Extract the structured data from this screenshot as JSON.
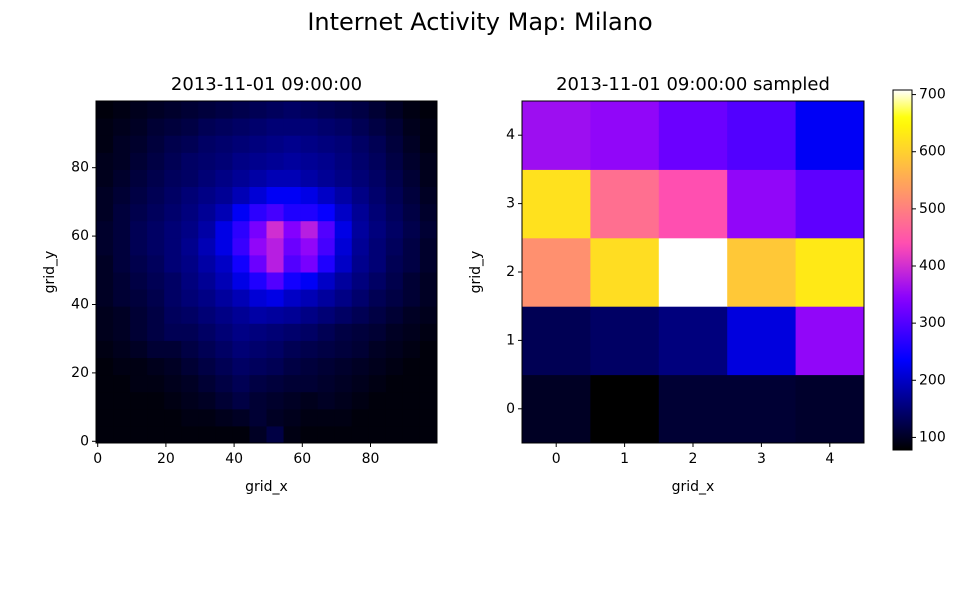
{
  "title": "Internet Activity Map: Milano",
  "chart_data": [
    {
      "type": "heatmap",
      "title": "2013-11-01 09:00:00",
      "x_label": "grid_x",
      "y_label": "grid_y",
      "colormap": "gnuplot2",
      "clim": [
        78,
        708
      ],
      "xlim": [
        -0.5,
        99.5
      ],
      "ylim": [
        -0.5,
        99.5
      ],
      "xticks": [
        0,
        20,
        40,
        60,
        80
      ],
      "yticks": [
        0,
        20,
        40,
        60,
        80
      ],
      "z": [
        [
          85,
          85,
          85,
          85,
          85,
          85,
          85,
          85,
          85,
          100,
          120,
          90,
          85,
          85,
          85,
          85,
          85,
          85,
          85,
          85
        ],
        [
          85,
          85,
          85,
          85,
          85,
          90,
          90,
          95,
          100,
          110,
          100,
          95,
          90,
          90,
          90,
          85,
          85,
          85,
          85,
          85
        ],
        [
          85,
          85,
          85,
          85,
          90,
          95,
          100,
          110,
          120,
          110,
          105,
          100,
          95,
          100,
          95,
          90,
          85,
          85,
          85,
          85
        ],
        [
          85,
          85,
          90,
          90,
          95,
          100,
          110,
          120,
          130,
          120,
          115,
          110,
          110,
          105,
          100,
          95,
          90,
          85,
          85,
          85
        ],
        [
          85,
          90,
          90,
          95,
          100,
          110,
          120,
          130,
          140,
          135,
          130,
          120,
          115,
          110,
          105,
          100,
          95,
          90,
          85,
          85
        ],
        [
          90,
          95,
          100,
          110,
          110,
          120,
          130,
          140,
          150,
          145,
          140,
          130,
          125,
          120,
          115,
          110,
          100,
          95,
          90,
          85
        ],
        [
          95,
          100,
          110,
          120,
          130,
          130,
          140,
          150,
          160,
          155,
          150,
          145,
          140,
          130,
          120,
          115,
          110,
          100,
          95,
          90
        ],
        [
          95,
          100,
          110,
          120,
          135,
          140,
          150,
          160,
          170,
          180,
          175,
          170,
          160,
          150,
          140,
          130,
          120,
          110,
          100,
          95
        ],
        [
          100,
          110,
          115,
          125,
          140,
          150,
          160,
          175,
          190,
          210,
          220,
          200,
          190,
          175,
          160,
          145,
          130,
          120,
          110,
          100
        ],
        [
          100,
          110,
          120,
          130,
          140,
          155,
          170,
          190,
          220,
          260,
          300,
          250,
          230,
          200,
          175,
          155,
          140,
          125,
          110,
          100
        ],
        [
          100,
          115,
          125,
          135,
          150,
          160,
          180,
          200,
          250,
          320,
          380,
          300,
          330,
          260,
          200,
          165,
          150,
          130,
          120,
          105
        ],
        [
          105,
          115,
          130,
          140,
          150,
          165,
          190,
          220,
          280,
          350,
          380,
          320,
          350,
          290,
          210,
          170,
          150,
          135,
          120,
          105
        ],
        [
          105,
          115,
          130,
          140,
          150,
          160,
          180,
          220,
          270,
          330,
          400,
          340,
          380,
          300,
          220,
          175,
          155,
          140,
          125,
          110
        ],
        [
          100,
          115,
          125,
          135,
          145,
          155,
          170,
          190,
          230,
          270,
          290,
          260,
          260,
          240,
          200,
          170,
          150,
          135,
          120,
          105
        ],
        [
          100,
          110,
          120,
          130,
          140,
          150,
          160,
          170,
          190,
          210,
          230,
          230,
          220,
          200,
          180,
          160,
          145,
          130,
          115,
          100
        ],
        [
          95,
          105,
          115,
          125,
          135,
          140,
          150,
          160,
          170,
          180,
          190,
          190,
          180,
          170,
          160,
          150,
          140,
          125,
          110,
          95
        ],
        [
          95,
          100,
          110,
          120,
          130,
          140,
          145,
          150,
          160,
          165,
          170,
          175,
          170,
          165,
          155,
          145,
          135,
          120,
          105,
          95
        ],
        [
          90,
          100,
          105,
          115,
          125,
          130,
          140,
          145,
          150,
          155,
          160,
          165,
          160,
          155,
          150,
          140,
          130,
          115,
          100,
          90
        ],
        [
          90,
          95,
          100,
          110,
          115,
          120,
          130,
          135,
          140,
          145,
          150,
          150,
          150,
          145,
          140,
          130,
          120,
          110,
          95,
          90
        ],
        [
          85,
          90,
          95,
          100,
          105,
          110,
          115,
          120,
          125,
          130,
          135,
          140,
          135,
          130,
          125,
          120,
          110,
          100,
          90,
          85
        ]
      ]
    },
    {
      "type": "heatmap",
      "title": "2013-11-01 09:00:00 sampled",
      "x_label": "grid_x",
      "y_label": "grid_y",
      "colormap": "gnuplot2",
      "clim": [
        78,
        708
      ],
      "xlim": [
        -0.5,
        4.5
      ],
      "ylim": [
        -0.5,
        4.5
      ],
      "xticks": [
        0,
        1,
        2,
        3,
        4
      ],
      "yticks": [
        0,
        1,
        2,
        3,
        4
      ],
      "z": [
        [
          100,
          78,
          110,
          110,
          105
        ],
        [
          130,
          140,
          155,
          215,
          350
        ],
        [
          520,
          615,
          708,
          590,
          630
        ],
        [
          620,
          480,
          440,
          350,
          310
        ],
        [
          360,
          350,
          320,
          300,
          230
        ]
      ],
      "colorbar_ticks": [
        100,
        200,
        300,
        400,
        500,
        600,
        700
      ]
    }
  ]
}
